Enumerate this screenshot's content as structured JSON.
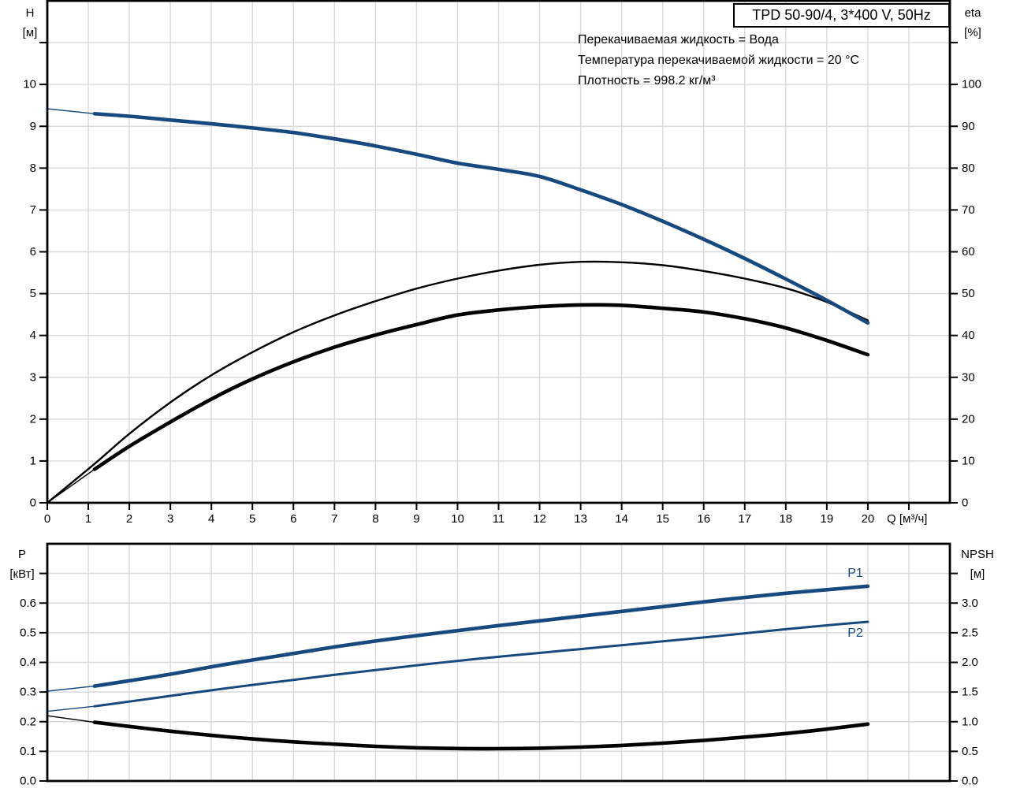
{
  "title_box": {
    "text": "TPD 50-90/4, 3*400 V, 50Hz"
  },
  "conditions": {
    "line1": "Перекачиваемая жидкость = Вода",
    "line2": "Температура перекачиваемой жидкости = 20 °C",
    "line3": "Плотность = 998.2 кг/м³"
  },
  "colors": {
    "curve_blue": "#17497E",
    "grid": "#D8DADD",
    "axis": "#000000",
    "background": "#FFFFFF"
  },
  "chart_data": [
    {
      "name": "head-efficiency-chart",
      "type": "line",
      "title": "TPD 50-90/4, 3*400 V, 50Hz",
      "grid": true,
      "x_axis": {
        "label": "Q [м³/ч]",
        "min": 0,
        "max": 22,
        "show_tick_marks": true,
        "ticks": [
          {
            "v": 0,
            "label": "0"
          },
          {
            "v": 1,
            "label": "1"
          },
          {
            "v": 2,
            "label": "2"
          },
          {
            "v": 3,
            "label": "3"
          },
          {
            "v": 4,
            "label": "4"
          },
          {
            "v": 5,
            "label": "5"
          },
          {
            "v": 6,
            "label": "6"
          },
          {
            "v": 7,
            "label": "7"
          },
          {
            "v": 8,
            "label": "8"
          },
          {
            "v": 9,
            "label": "9"
          },
          {
            "v": 10,
            "label": "10"
          },
          {
            "v": 11,
            "label": "11"
          },
          {
            "v": 12,
            "label": "12"
          },
          {
            "v": 13,
            "label": "13"
          },
          {
            "v": 14,
            "label": "14"
          },
          {
            "v": 15,
            "label": "15"
          },
          {
            "v": 16,
            "label": "16"
          },
          {
            "v": 17,
            "label": "17"
          },
          {
            "v": 18,
            "label": "18"
          },
          {
            "v": 19,
            "label": "19"
          },
          {
            "v": 20,
            "label": "20"
          },
          {
            "v": 21,
            "label": ""
          }
        ]
      },
      "left_axis": {
        "name": "H",
        "unit": "[м]",
        "min": 0,
        "max": 12,
        "ticks": [
          {
            "v": 0,
            "label": "0"
          },
          {
            "v": 1,
            "label": "1"
          },
          {
            "v": 2,
            "label": "2"
          },
          {
            "v": 3,
            "label": "3"
          },
          {
            "v": 4,
            "label": "4"
          },
          {
            "v": 5,
            "label": "5"
          },
          {
            "v": 6,
            "label": "6"
          },
          {
            "v": 7,
            "label": "7"
          },
          {
            "v": 8,
            "label": "8"
          },
          {
            "v": 9,
            "label": "9"
          },
          {
            "v": 10,
            "label": "10"
          },
          {
            "v": 11,
            "label": ""
          }
        ]
      },
      "right_axis": {
        "name": "eta",
        "unit": "[%]",
        "min": 0,
        "max": 120,
        "ticks": [
          {
            "v": 0,
            "label": "0"
          },
          {
            "v": 10,
            "label": "10"
          },
          {
            "v": 20,
            "label": "20"
          },
          {
            "v": 30,
            "label": "30"
          },
          {
            "v": 40,
            "label": "40"
          },
          {
            "v": 50,
            "label": "50"
          },
          {
            "v": 60,
            "label": "60"
          },
          {
            "v": 70,
            "label": "70"
          },
          {
            "v": 80,
            "label": "80"
          },
          {
            "v": 90,
            "label": "90"
          },
          {
            "v": 100,
            "label": "100"
          },
          {
            "v": 110,
            "label": ""
          }
        ]
      },
      "series": [
        {
          "name": "efficiency-curve-thin",
          "axis": "right",
          "color": "#000000",
          "width": 2.4,
          "thin": [],
          "points": [
            [
              0,
              0
            ],
            [
              1.15,
              9.3
            ],
            [
              2,
              16.5
            ],
            [
              3,
              24
            ],
            [
              4,
              30.5
            ],
            [
              5,
              36
            ],
            [
              6,
              40.8
            ],
            [
              7,
              44.8
            ],
            [
              8,
              48.2
            ],
            [
              9,
              51.2
            ],
            [
              10,
              53.6
            ],
            [
              11,
              55.5
            ],
            [
              12,
              56.9
            ],
            [
              13,
              57.6
            ],
            [
              14,
              57.5
            ],
            [
              15,
              56.8
            ],
            [
              16,
              55.4
            ],
            [
              17,
              53.6
            ],
            [
              18,
              51.3
            ],
            [
              19,
              48
            ],
            [
              20,
              43.6
            ]
          ]
        },
        {
          "name": "efficiency-curve-thick",
          "axis": "right",
          "color": "#000000",
          "width": 4.6,
          "thin": [
            [
              0,
              0
            ],
            [
              1.15,
              8
            ]
          ],
          "points": [
            [
              1.15,
              8
            ],
            [
              2,
              13.5
            ],
            [
              3,
              19.3
            ],
            [
              4,
              24.8
            ],
            [
              5,
              29.6
            ],
            [
              6,
              33.7
            ],
            [
              7,
              37.2
            ],
            [
              8,
              40.1
            ],
            [
              9,
              42.6
            ],
            [
              10,
              44.9
            ],
            [
              11,
              46.1
            ],
            [
              12,
              46.9
            ],
            [
              13,
              47.3
            ],
            [
              14,
              47.2
            ],
            [
              15,
              46.5
            ],
            [
              16,
              45.6
            ],
            [
              17,
              44
            ],
            [
              18,
              41.8
            ],
            [
              19,
              38.8
            ],
            [
              20,
              35.4
            ]
          ]
        },
        {
          "name": "head-curve",
          "axis": "left",
          "color": "#17497E",
          "width": 4.6,
          "thin": [
            [
              0,
              9.42
            ],
            [
              1.15,
              9.3
            ]
          ],
          "points": [
            [
              1.15,
              9.3
            ],
            [
              2,
              9.24
            ],
            [
              3,
              9.15
            ],
            [
              4,
              9.06
            ],
            [
              5,
              8.96
            ],
            [
              6,
              8.85
            ],
            [
              7,
              8.7
            ],
            [
              8,
              8.53
            ],
            [
              9,
              8.33
            ],
            [
              10,
              8.12
            ],
            [
              11,
              7.97
            ],
            [
              12,
              7.8
            ],
            [
              13,
              7.48
            ],
            [
              14,
              7.13
            ],
            [
              15,
              6.73
            ],
            [
              16,
              6.3
            ],
            [
              17,
              5.84
            ],
            [
              18,
              5.35
            ],
            [
              19,
              4.84
            ],
            [
              20,
              4.3
            ]
          ]
        }
      ]
    },
    {
      "name": "power-npsh-chart",
      "type": "line",
      "grid": true,
      "x_axis": {
        "label": "",
        "min": 0,
        "max": 22,
        "show_tick_marks": false,
        "ticks": [
          {
            "v": 1,
            "label": ""
          },
          {
            "v": 2,
            "label": ""
          },
          {
            "v": 3,
            "label": ""
          },
          {
            "v": 4,
            "label": ""
          },
          {
            "v": 5,
            "label": ""
          },
          {
            "v": 6,
            "label": ""
          },
          {
            "v": 7,
            "label": ""
          },
          {
            "v": 8,
            "label": ""
          },
          {
            "v": 9,
            "label": ""
          },
          {
            "v": 10,
            "label": ""
          },
          {
            "v": 11,
            "label": ""
          },
          {
            "v": 12,
            "label": ""
          },
          {
            "v": 13,
            "label": ""
          },
          {
            "v": 14,
            "label": ""
          },
          {
            "v": 15,
            "label": ""
          },
          {
            "v": 16,
            "label": ""
          },
          {
            "v": 17,
            "label": ""
          },
          {
            "v": 18,
            "label": ""
          },
          {
            "v": 19,
            "label": ""
          },
          {
            "v": 20,
            "label": ""
          },
          {
            "v": 21,
            "label": ""
          }
        ]
      },
      "left_axis": {
        "name": "P",
        "unit": "[кВт]",
        "min": 0,
        "max": 0.8,
        "ticks": [
          {
            "v": 0,
            "label": "0.0"
          },
          {
            "v": 0.1,
            "label": "0.1"
          },
          {
            "v": 0.2,
            "label": "0.2"
          },
          {
            "v": 0.3,
            "label": "0.3"
          },
          {
            "v": 0.4,
            "label": "0.4"
          },
          {
            "v": 0.5,
            "label": "0.5"
          },
          {
            "v": 0.6,
            "label": "0.6"
          },
          {
            "v": 0.7,
            "label": ""
          }
        ]
      },
      "right_axis": {
        "name": "NPSH",
        "unit": "[м]",
        "min": 0,
        "max": 4,
        "ticks": [
          {
            "v": 0,
            "label": "0.0"
          },
          {
            "v": 0.5,
            "label": "0.5"
          },
          {
            "v": 1,
            "label": "1.0"
          },
          {
            "v": 1.5,
            "label": "1.5"
          },
          {
            "v": 2,
            "label": "2.0"
          },
          {
            "v": 2.5,
            "label": "2.5"
          },
          {
            "v": 3,
            "label": "3.0"
          },
          {
            "v": 3.5,
            "label": ""
          }
        ]
      },
      "series": [
        {
          "name": "npsh-curve",
          "label": "",
          "axis": "right",
          "color": "#000000",
          "width": 4.6,
          "thin": [
            [
              0,
              1.1
            ],
            [
              1.15,
              0.99
            ]
          ],
          "points": [
            [
              1.15,
              0.99
            ],
            [
              2,
              0.92
            ],
            [
              3,
              0.84
            ],
            [
              4,
              0.77
            ],
            [
              5,
              0.71
            ],
            [
              6,
              0.66
            ],
            [
              7,
              0.62
            ],
            [
              8,
              0.585
            ],
            [
              9,
              0.56
            ],
            [
              10,
              0.548
            ],
            [
              11,
              0.545
            ],
            [
              12,
              0.553
            ],
            [
              13,
              0.572
            ],
            [
              14,
              0.6
            ],
            [
              15,
              0.638
            ],
            [
              16,
              0.685
            ],
            [
              17,
              0.74
            ],
            [
              18,
              0.8
            ],
            [
              19,
              0.875
            ],
            [
              20,
              0.96
            ]
          ]
        },
        {
          "name": "power-curve-p2",
          "label": "P2",
          "axis": "left",
          "color": "#17497E",
          "width": 3,
          "thin": [
            [
              0,
              0.235
            ],
            [
              1.15,
              0.252
            ]
          ],
          "points": [
            [
              1.15,
              0.252
            ],
            [
              2,
              0.268
            ],
            [
              3,
              0.287
            ],
            [
              4,
              0.306
            ],
            [
              5,
              0.324
            ],
            [
              6,
              0.341
            ],
            [
              7,
              0.358
            ],
            [
              8,
              0.374
            ],
            [
              9,
              0.39
            ],
            [
              10,
              0.405
            ],
            [
              11,
              0.419
            ],
            [
              12,
              0.432
            ],
            [
              13,
              0.445
            ],
            [
              14,
              0.458
            ],
            [
              15,
              0.471
            ],
            [
              16,
              0.484
            ],
            [
              17,
              0.498
            ],
            [
              18,
              0.512
            ],
            [
              19,
              0.525
            ],
            [
              20,
              0.537
            ]
          ]
        },
        {
          "name": "power-curve-p1",
          "label": "P1",
          "axis": "left",
          "color": "#17497E",
          "width": 4.6,
          "thin": [
            [
              0,
              0.303
            ],
            [
              1.15,
              0.32
            ]
          ],
          "points": [
            [
              1.15,
              0.32
            ],
            [
              2,
              0.338
            ],
            [
              3,
              0.36
            ],
            [
              4,
              0.385
            ],
            [
              5,
              0.408
            ],
            [
              6,
              0.43
            ],
            [
              7,
              0.452
            ],
            [
              8,
              0.472
            ],
            [
              9,
              0.49
            ],
            [
              10,
              0.507
            ],
            [
              11,
              0.524
            ],
            [
              12,
              0.54
            ],
            [
              13,
              0.556
            ],
            [
              14,
              0.572
            ],
            [
              15,
              0.588
            ],
            [
              16,
              0.604
            ],
            [
              17,
              0.619
            ],
            [
              18,
              0.633
            ],
            [
              19,
              0.645
            ],
            [
              20,
              0.657
            ]
          ]
        }
      ]
    }
  ]
}
